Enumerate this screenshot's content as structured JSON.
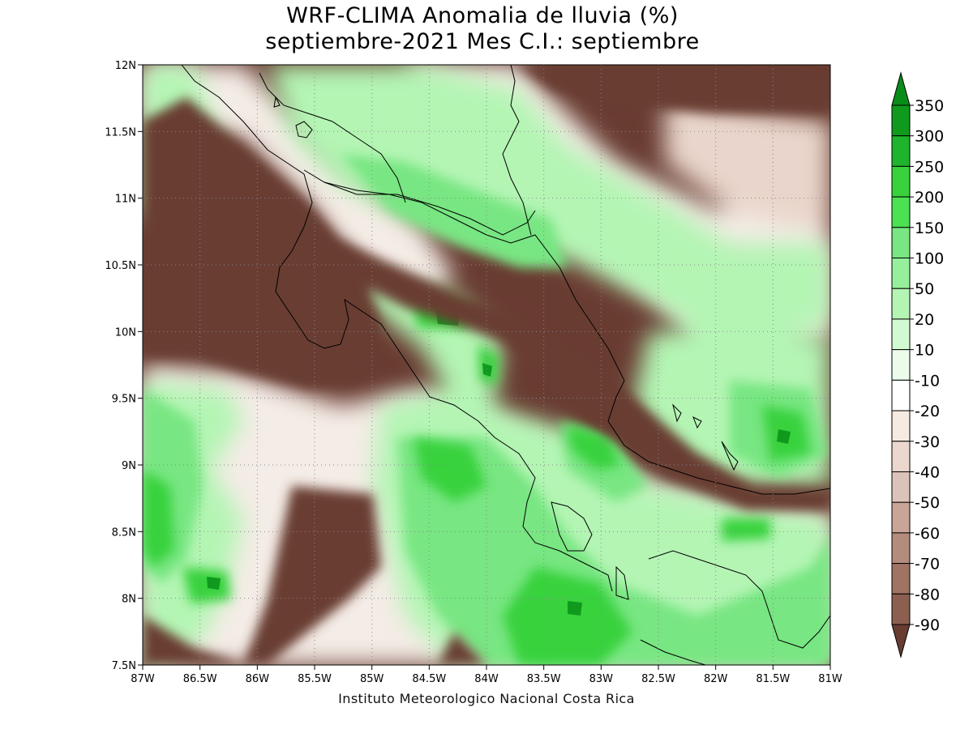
{
  "title": {
    "line1": "WRF-CLIMA Anomalia de lluvia (%)",
    "line2": "septiembre-2021 Mes C.I.: septiembre"
  },
  "credit": "Instituto Meteorologico Nacional Costa Rica",
  "axes": {
    "lat_ticks": [
      {
        "value": 12,
        "label": "12N"
      },
      {
        "value": 11.5,
        "label": "11.5N"
      },
      {
        "value": 11,
        "label": "11N"
      },
      {
        "value": 10.5,
        "label": "10.5N"
      },
      {
        "value": 10,
        "label": "10N"
      },
      {
        "value": 9.5,
        "label": "9.5N"
      },
      {
        "value": 9,
        "label": "9N"
      },
      {
        "value": 8.5,
        "label": "8.5N"
      },
      {
        "value": 8,
        "label": "8N"
      },
      {
        "value": 7.5,
        "label": "7.5N"
      }
    ],
    "lon_ticks": [
      {
        "value": -87,
        "label": "87W"
      },
      {
        "value": -86.5,
        "label": "86.5W"
      },
      {
        "value": -86,
        "label": "86W"
      },
      {
        "value": -85.5,
        "label": "85.5W"
      },
      {
        "value": -85,
        "label": "85W"
      },
      {
        "value": -84.5,
        "label": "84.5W"
      },
      {
        "value": -84,
        "label": "84W"
      },
      {
        "value": -83.5,
        "label": "83.5W"
      },
      {
        "value": -83,
        "label": "83W"
      },
      {
        "value": -82.5,
        "label": "82.5W"
      },
      {
        "value": -82,
        "label": "82W"
      },
      {
        "value": -81.5,
        "label": "81.5W"
      },
      {
        "value": -81,
        "label": "81W"
      }
    ],
    "lon_range": [
      -87,
      -81
    ],
    "lat_range": [
      7.5,
      12
    ]
  },
  "colorbar": {
    "levels": [
      {
        "label": "350",
        "color": "#0f9a1e"
      },
      {
        "label": "300",
        "color": "#1eb42d"
      },
      {
        "label": "250",
        "color": "#37d23c"
      },
      {
        "label": "200",
        "color": "#4be150"
      },
      {
        "label": "150",
        "color": "#78e682"
      },
      {
        "label": "100",
        "color": "#96f09b"
      },
      {
        "label": "50",
        "color": "#b4f5b4"
      },
      {
        "label": "20",
        "color": "#d2fad2"
      },
      {
        "label": "10",
        "color": "#ebfceb"
      },
      {
        "label": "-10",
        "color": "#ffffff"
      },
      {
        "label": "-20",
        "color": "#f7ebe1"
      },
      {
        "label": "-30",
        "color": "#ebd7cd"
      },
      {
        "label": "-40",
        "color": "#dcc3b9"
      },
      {
        "label": "-50",
        "color": "#c8a596"
      },
      {
        "label": "-60",
        "color": "#b48c7d"
      },
      {
        "label": "-70",
        "color": "#a07364"
      },
      {
        "label": "-80",
        "color": "#8c5f50"
      },
      {
        "label": "-90",
        "color": "#784b3c"
      }
    ],
    "top_arrow_color": "#0a8c19",
    "bottom_arrow_color": "#693c32"
  },
  "colors": {
    "strong_dry": "#693c32",
    "strong_wet": "#0f9a1e"
  }
}
